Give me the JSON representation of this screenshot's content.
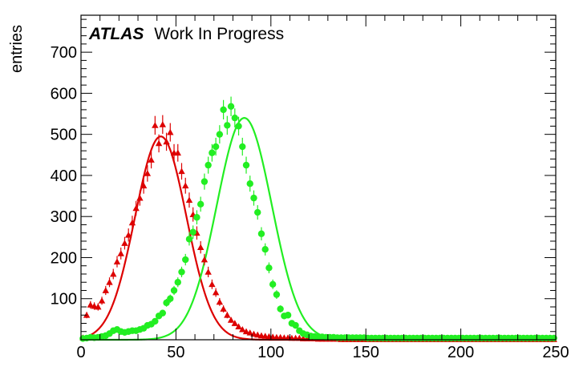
{
  "atlas_label": {
    "experiment": "ATLAS",
    "status": "Work In Progress"
  },
  "chart_data": {
    "type": "scatter",
    "ylabel": "entries",
    "xlabel": "",
    "xlim": [
      0,
      250
    ],
    "ylim": [
      0,
      790
    ],
    "x_ticks": [
      0,
      50,
      100,
      150,
      200,
      250
    ],
    "y_ticks": [
      100,
      200,
      300,
      400,
      500,
      600,
      700
    ],
    "grid": false,
    "colors": {
      "red": "#dd0000",
      "green": "#22ee22"
    },
    "series": [
      {
        "marker": "triangle",
        "color": "#dd0000",
        "fit": {
          "type": "gaussian",
          "mean": 42,
          "sigma": 13.5,
          "amplitude": 495
        },
        "x": [
          1,
          3,
          5,
          7,
          9,
          11,
          13,
          15,
          17,
          19,
          21,
          23,
          25,
          27,
          29,
          31,
          33,
          35,
          37,
          39,
          41,
          43,
          45,
          47,
          49,
          51,
          53,
          55,
          57,
          59,
          61,
          63,
          65,
          67,
          69,
          71,
          73,
          75,
          77,
          79,
          81,
          83,
          85,
          87,
          89,
          91,
          93,
          95,
          97,
          99,
          101,
          103,
          105,
          107,
          109,
          111,
          113,
          115,
          117,
          119,
          121,
          123,
          125,
          127,
          129,
          131,
          133,
          135,
          137,
          139,
          141,
          143,
          145,
          147,
          149,
          151,
          153,
          155,
          157,
          159,
          161,
          163,
          165,
          167,
          169,
          171,
          173,
          175,
          177,
          179,
          181,
          183,
          185,
          187,
          189,
          191,
          193,
          195,
          197,
          199,
          201,
          203,
          205,
          207,
          209,
          211,
          213,
          215,
          217,
          219,
          221,
          223,
          225,
          227,
          229,
          231,
          233,
          235,
          237,
          239,
          241,
          243,
          245,
          247,
          249
        ],
        "y": [
          5,
          60,
          85,
          82,
          80,
          95,
          120,
          140,
          160,
          190,
          210,
          235,
          255,
          285,
          320,
          345,
          375,
          405,
          438,
          522,
          478,
          524,
          482,
          505,
          455,
          455,
          410,
          375,
          340,
          305,
          260,
          225,
          195,
          165,
          135,
          115,
          92,
          75,
          60,
          48,
          40,
          32,
          25,
          20,
          17,
          14,
          12,
          10,
          9,
          8,
          7,
          6,
          6,
          5,
          5,
          4,
          4,
          4,
          3,
          3,
          3,
          3,
          2,
          2,
          2,
          2,
          2,
          2,
          1,
          1,
          1,
          1,
          1,
          1,
          1,
          1,
          1,
          1,
          1,
          1,
          1,
          1,
          1,
          1,
          1,
          1,
          1,
          1,
          1,
          1,
          1,
          1,
          1,
          1,
          1,
          1,
          1,
          1,
          1,
          1,
          1,
          1,
          1,
          1,
          1,
          1,
          1,
          1,
          1,
          1,
          1,
          1,
          1,
          1,
          1,
          1,
          1,
          1,
          1,
          1,
          1,
          1,
          1,
          1,
          1
        ]
      },
      {
        "marker": "circle",
        "color": "#22ee22",
        "fit": {
          "type": "gaussian",
          "mean": 86,
          "sigma": 14.5,
          "amplitude": 540
        },
        "x": [
          1,
          3,
          5,
          7,
          9,
          11,
          13,
          15,
          17,
          19,
          21,
          23,
          25,
          27,
          29,
          31,
          33,
          35,
          37,
          39,
          41,
          43,
          45,
          47,
          49,
          51,
          53,
          55,
          57,
          59,
          61,
          63,
          65,
          67,
          69,
          71,
          73,
          75,
          77,
          79,
          81,
          83,
          85,
          87,
          89,
          91,
          93,
          95,
          97,
          99,
          101,
          103,
          105,
          107,
          109,
          111,
          113,
          115,
          117,
          119,
          121,
          123,
          125,
          127,
          129,
          131,
          133,
          135,
          137,
          139,
          141,
          143,
          145,
          147,
          149,
          151,
          153,
          155,
          157,
          159,
          161,
          163,
          165,
          167,
          169,
          171,
          173,
          175,
          177,
          179,
          181,
          183,
          185,
          187,
          189,
          191,
          193,
          195,
          197,
          199,
          201,
          203,
          205,
          207,
          209,
          211,
          213,
          215,
          217,
          219,
          221,
          223,
          225,
          227,
          229,
          231,
          233,
          235,
          237,
          239,
          241,
          243,
          245,
          247,
          249
        ],
        "y": [
          3,
          4,
          6,
          5,
          6,
          8,
          10,
          15,
          22,
          25,
          20,
          18,
          20,
          22,
          22,
          25,
          28,
          35,
          38,
          45,
          58,
          65,
          90,
          100,
          120,
          140,
          165,
          195,
          245,
          262,
          298,
          330,
          385,
          425,
          455,
          470,
          500,
          560,
          522,
          568,
          540,
          520,
          470,
          425,
          380,
          345,
          310,
          258,
          220,
          175,
          135,
          110,
          75,
          58,
          60,
          40,
          35,
          22,
          15,
          12,
          9,
          8,
          7,
          7,
          6,
          6,
          6,
          5,
          5,
          5,
          5,
          5,
          5,
          5,
          5,
          4,
          4,
          4,
          4,
          4,
          4,
          4,
          4,
          4,
          4,
          4,
          4,
          4,
          4,
          4,
          4,
          4,
          4,
          4,
          4,
          4,
          4,
          4,
          4,
          4,
          4,
          4,
          4,
          4,
          4,
          4,
          4,
          4,
          4,
          4,
          4,
          4,
          4,
          4,
          4,
          4,
          4,
          4,
          4,
          4,
          4,
          4,
          4,
          4,
          4
        ]
      }
    ]
  }
}
